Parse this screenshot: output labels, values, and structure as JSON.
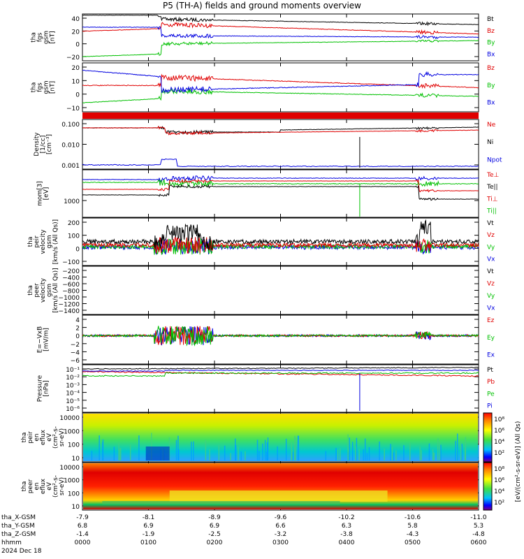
{
  "title": "P5 (TH-A) fields and ground moments overview",
  "colors": {
    "black": "#000000",
    "red": "#e00000",
    "green": "#00c000",
    "blue": "#0000e0"
  },
  "chart_data": {
    "type": "line",
    "x_ticks": [
      "0000",
      "0100",
      "0200",
      "0300",
      "0400",
      "0500",
      "0600"
    ],
    "ephemeris": [
      {
        "label": "tha_X-GSM",
        "values": [
          "-7.9",
          "-8.1",
          "-8.9",
          "-9.6",
          "-10.2",
          "-10.6",
          "-11.0"
        ]
      },
      {
        "label": "tha_Y-GSM",
        "values": [
          "6.8",
          "6.9",
          "6.9",
          "6.6",
          "6.3",
          "5.8",
          "5.3"
        ]
      },
      {
        "label": "tha_Z-GSM",
        "values": [
          "-1.4",
          "-1.9",
          "-2.5",
          "-3.2",
          "-3.8",
          "-4.3",
          "-4.8"
        ]
      },
      {
        "label": "hhmm",
        "values": []
      }
    ],
    "date_label": "2024 Dec 18",
    "panels": [
      {
        "id": "fgs",
        "ylabel": [
          "tha",
          "fgs",
          "gsm",
          "[nT]"
        ],
        "yticks": [
          "40",
          "20",
          "0",
          "−20"
        ],
        "legend": [
          {
            "name": "Bt",
            "color": "#000000"
          },
          {
            "name": "Bz",
            "color": "#e00000"
          },
          {
            "name": "By",
            "color": "#00c000"
          },
          {
            "name": "Bx",
            "color": "#0000e0"
          }
        ]
      },
      {
        "id": "fgs_zoom",
        "ylabel": [
          "tha",
          "fgs",
          "gsm",
          "[nT]"
        ],
        "yticks": [
          "20",
          "10",
          "0",
          "−10"
        ],
        "legend": [
          {
            "name": "Bz",
            "color": "#e00000"
          },
          {
            "name": "By",
            "color": "#00c000"
          },
          {
            "name": "Bx",
            "color": "#0000e0"
          }
        ]
      },
      {
        "id": "density",
        "ylabel": [
          "Density",
          "[1/cc]",
          "[cm⁻³]"
        ],
        "yticks": [
          "0.100",
          "0.010",
          "0.001"
        ],
        "legend": [
          {
            "name": "Ne",
            "color": "#e00000"
          },
          {
            "name": "Ni",
            "color": "#000000"
          },
          {
            "name": "Npot",
            "color": "#0000e0"
          }
        ]
      },
      {
        "id": "temp",
        "ylabel": [
          "mom[3]",
          "[eV]"
        ],
        "yticks": [
          "1000"
        ],
        "legend": [
          {
            "name": "Te⊥",
            "color": "#e00000"
          },
          {
            "name": "Te||",
            "color": "#000000"
          },
          {
            "name": "Ti⊥",
            "color": "#e00000"
          },
          {
            "name": "Ti||",
            "color": "#00c000"
          }
        ]
      },
      {
        "id": "vel_i",
        "ylabel": [
          "tha",
          "peir",
          "velocity",
          "gsm",
          "[km/s (All Qs)]"
        ],
        "yticks": [
          "200",
          "100",
          "0",
          "−100"
        ],
        "legend": [
          {
            "name": "Vt",
            "color": "#000000"
          },
          {
            "name": "Vz",
            "color": "#e00000"
          },
          {
            "name": "Vy",
            "color": "#00c000"
          },
          {
            "name": "Vx",
            "color": "#0000e0"
          }
        ]
      },
      {
        "id": "vel_e",
        "ylabel": [
          "tha",
          "peer",
          "velocity",
          "gsm",
          "[km/s (All Qs)]"
        ],
        "yticks": [
          "−200",
          "−400",
          "−600",
          "−800",
          "−1000",
          "−1200",
          "−1400"
        ],
        "legend": [
          {
            "name": "Vt",
            "color": "#000000"
          },
          {
            "name": "Vz",
            "color": "#e00000"
          },
          {
            "name": "Vy",
            "color": "#00c000"
          },
          {
            "name": "Vx",
            "color": "#0000e0"
          }
        ]
      },
      {
        "id": "efield",
        "ylabel": [
          "E=−VxB",
          "[mV/m]"
        ],
        "yticks": [
          "4",
          "2",
          "0",
          "−2",
          "−4",
          "−6"
        ],
        "legend": [
          {
            "name": "Ez",
            "color": "#e00000"
          },
          {
            "name": "Ey",
            "color": "#00c000"
          },
          {
            "name": "Ex",
            "color": "#0000e0"
          }
        ]
      },
      {
        "id": "pressure",
        "ylabel": [
          "Pressure",
          "[nPa]"
        ],
        "yticks": [
          "10⁻¹",
          "10⁻²",
          "10⁻³",
          "10⁻⁴",
          "10⁻⁵",
          "10⁻⁶"
        ],
        "legend": [
          {
            "name": "Pt",
            "color": "#000000"
          },
          {
            "name": "Pb",
            "color": "#e00000"
          },
          {
            "name": "Pe",
            "color": "#00c000"
          },
          {
            "name": "Pi",
            "color": "#0000e0"
          }
        ]
      },
      {
        "id": "spec_i",
        "ylabel": [
          "tha",
          "peir",
          "en",
          "eflux",
          "eV",
          "(cm²-s-",
          "sr-eV)"
        ],
        "yticks": [
          "10000",
          "1000",
          "100",
          "10"
        ]
      },
      {
        "id": "spec_e",
        "ylabel": [
          "tha",
          "peer",
          "en",
          "eflux",
          "eV",
          "(cm²-s-",
          "sr-eV)"
        ],
        "yticks": [
          "10000",
          "1000",
          "100",
          "10"
        ]
      }
    ],
    "colorbar": {
      "label": "[eV/(cm²-s-sr-eV)] (All Qs)",
      "ticks_i": [
        "10⁸",
        "10⁶",
        "10⁴",
        "10²"
      ],
      "ticks_e": [
        "10⁸",
        "10⁶",
        "10⁴",
        "10²"
      ]
    }
  }
}
